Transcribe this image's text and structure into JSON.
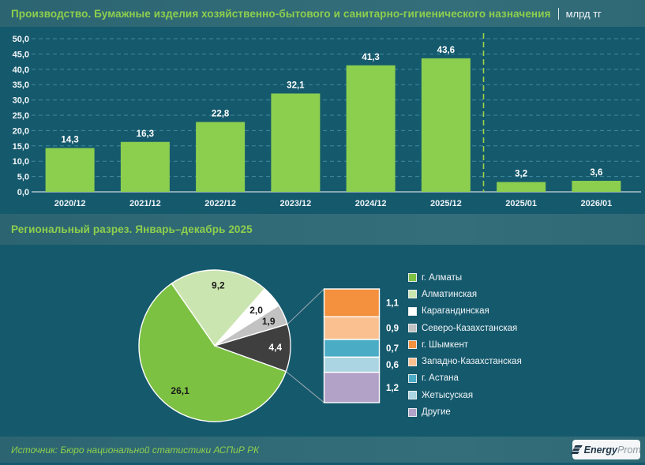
{
  "header": {
    "title": "Производство. Бумажные изделия хозяйственно-бытового и санитарно-гигиенического назначения",
    "unit": "млрд тг"
  },
  "section2": {
    "title": "Региональный разрез. Январь–декабрь 2025"
  },
  "footer": {
    "source": "Источник: Бюро национальной статистики АСПиР РК",
    "logo_bold": "Energy",
    "logo_light": "Prom"
  },
  "colors": {
    "background": "#15596d",
    "strip": "#306a76",
    "accent_green": "#8ecf4d",
    "text_white": "#f2f7f8",
    "grid": "#3f8ba0",
    "axis_line": "#c9d6da"
  },
  "chart_data": [
    {
      "type": "bar",
      "title": "Производство. Бумажные изделия хозяйственно-бытового и санитарно-гигиенического назначения, млрд тг",
      "categories": [
        "2020/12",
        "2021/12",
        "2022/12",
        "2023/12",
        "2024/12",
        "2025/12",
        "2025/01",
        "2026/01"
      ],
      "values": [
        14.3,
        16.3,
        22.8,
        32.1,
        41.3,
        43.6,
        3.2,
        3.6
      ],
      "value_labels": [
        "14,3",
        "16,3",
        "22,8",
        "32,1",
        "41,3",
        "43,6",
        "3,2",
        "3,6"
      ],
      "xlabel": "",
      "ylabel": "",
      "ylim": [
        0,
        50
      ],
      "ytick_step": 5,
      "ytick_labels": [
        "0,0",
        "5,0",
        "10,0",
        "15,0",
        "20,0",
        "25,0",
        "30,0",
        "35,0",
        "40,0",
        "45,0",
        "50,0"
      ],
      "grid": "dashed horizontal",
      "grid_color": "#3f8ba0",
      "bar_color": "#8ccf4f",
      "separator_after_index": 5,
      "separator_color": "#9fd24a"
    },
    {
      "type": "pie",
      "title": "Региональный разрез. Январь–декабрь 2025",
      "start_angle": 109.8,
      "slices": [
        {
          "region": "г. Алматы",
          "value": 26.1,
          "label": "26,1",
          "color": "#7cc142",
          "label_color": "#1a1a1a"
        },
        {
          "region": "Алматинская",
          "value": 9.2,
          "label": "9,2",
          "color": "#cbe5b0",
          "label_color": "#1a1a1a"
        },
        {
          "region": "Карагандинская",
          "value": 2.0,
          "label": "2,0",
          "color": "#ffffff",
          "label_color": "#1a1a1a"
        },
        {
          "region": "Северо-Казахстанская",
          "value": 1.9,
          "label": "1,9",
          "color": "#c2c2c2",
          "label_color": "#1a1a1a"
        },
        {
          "value": 4.4,
          "label": "4,4",
          "color": "#3f3f3f",
          "label_color": "#ffffff",
          "breakout": true
        }
      ],
      "breakout": {
        "segments": [
          {
            "region": "г. Шымкент",
            "value": 1.1,
            "label": "1,1",
            "color": "#f4913e"
          },
          {
            "region": "Западно-Казахстанская",
            "value": 0.9,
            "label": "0,9",
            "color": "#fac090"
          },
          {
            "region": "г. Астана",
            "value": 0.7,
            "label": "0,7",
            "color": "#4bacc6"
          },
          {
            "region": "Жетысуская",
            "value": 0.6,
            "label": "0,6",
            "color": "#abd5e2"
          },
          {
            "region": "Другие",
            "value": 1.2,
            "label": "1,2",
            "color": "#b2a2c7"
          }
        ]
      },
      "legend_position": "right",
      "legend": [
        {
          "label": "г. Алматы",
          "color": "#7cc142"
        },
        {
          "label": "Алматинская",
          "color": "#cbe5b0"
        },
        {
          "label": "Карагандинская",
          "color": "#ffffff"
        },
        {
          "label": "Северо-Казахстанская",
          "color": "#c2c2c2"
        },
        {
          "label": "г. Шымкент",
          "color": "#f4913e"
        },
        {
          "label": "Западно-Казахстанская",
          "color": "#fac090"
        },
        {
          "label": "г. Астана",
          "color": "#4bacc6"
        },
        {
          "label": "Жетысуская",
          "color": "#abd5e2"
        },
        {
          "label": "Другие",
          "color": "#b2a2c7"
        }
      ]
    }
  ]
}
